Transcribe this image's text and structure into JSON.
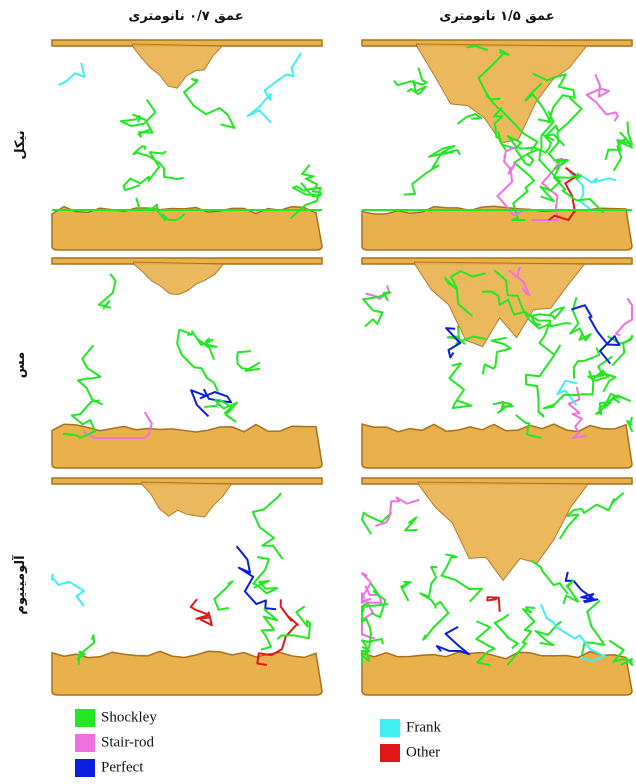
{
  "columns": [
    "عمق ۰/۷ نانومتری",
    "عمق ۱/۵ نانومتری"
  ],
  "rows": [
    "نیکل",
    "مس",
    "آلومینیوم"
  ],
  "legend": [
    {
      "label": "Shockley",
      "color": "#22e822"
    },
    {
      "label": "Stair-rod",
      "color": "#f070e0"
    },
    {
      "label": "Perfect",
      "color": "#0a1ee0"
    },
    {
      "label": "Frank",
      "color": "#40f0f0"
    },
    {
      "label": "Other",
      "color": "#e01818"
    }
  ]
}
